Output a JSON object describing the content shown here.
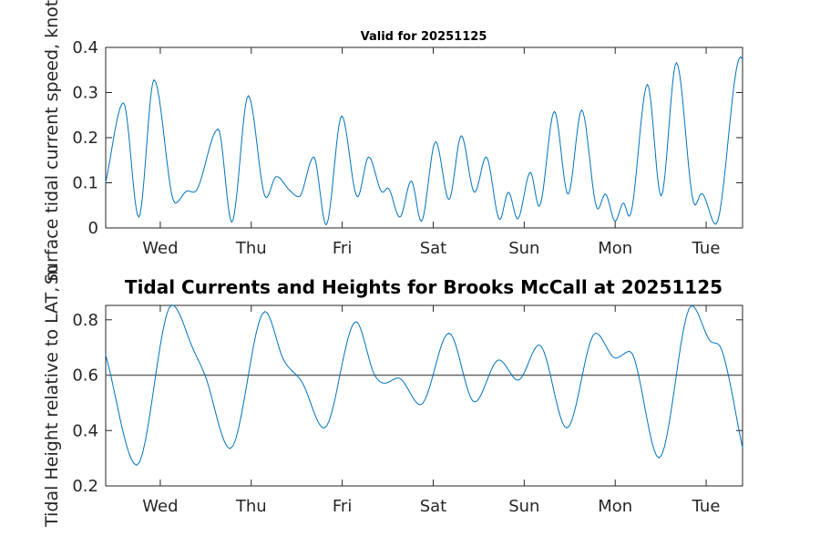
{
  "chart_data": [
    {
      "type": "line",
      "title": "Valid for 20251125",
      "xlabel": "",
      "ylabel": "Surface tidal current speed, knots",
      "x_unit": "days since Wed 00:00",
      "xlim": [
        -0.6,
        6.4
      ],
      "ylim": [
        0,
        0.4
      ],
      "yticks": [
        0,
        0.1,
        0.2,
        0.3,
        0.4
      ],
      "ytick_labels": [
        "0",
        "0.1",
        "0.2",
        "0.3",
        "0.4"
      ],
      "xticks": [
        0,
        1,
        2,
        3,
        4,
        5,
        6
      ],
      "xtick_labels": [
        "Wed",
        "Thu",
        "Fri",
        "Sat",
        "Sun",
        "Mon",
        "Tue"
      ],
      "grid": false,
      "color": "#0072BD",
      "series": [
        {
          "name": "current speed",
          "x": [
            -0.6,
            -0.405,
            -0.236,
            -0.068,
            0.164,
            0.286,
            0.4,
            0.636,
            0.786,
            0.968,
            1.164,
            1.277,
            1.423,
            1.523,
            1.686,
            1.823,
            1.995,
            2.168,
            2.291,
            2.445,
            2.5,
            2.632,
            2.759,
            2.868,
            3.027,
            3.173,
            3.309,
            3.455,
            3.582,
            3.732,
            3.827,
            3.927,
            4.068,
            4.164,
            4.332,
            4.482,
            4.632,
            4.809,
            4.891,
            5.0,
            5.091,
            5.155,
            5.355,
            5.505,
            5.673,
            5.877,
            5.95,
            6.105,
            6.377,
            6.4
          ],
          "y": [
            0.101,
            0.277,
            0.024,
            0.328,
            0.055,
            0.081,
            0.084,
            0.219,
            0.013,
            0.293,
            0.067,
            0.114,
            0.083,
            0.069,
            0.157,
            0.007,
            0.248,
            0.069,
            0.157,
            0.079,
            0.088,
            0.024,
            0.104,
            0.015,
            0.191,
            0.063,
            0.204,
            0.079,
            0.157,
            0.019,
            0.079,
            0.02,
            0.123,
            0.048,
            0.258,
            0.075,
            0.261,
            0.042,
            0.075,
            0.015,
            0.055,
            0.026,
            0.318,
            0.071,
            0.366,
            0.051,
            0.076,
            0.008,
            0.379,
            0.374
          ]
        }
      ]
    },
    {
      "type": "line",
      "title": "Tidal Currents and Heights for Brooks McCall at 20251125",
      "xlabel": "",
      "ylabel": "Tidal Height relative to LAT, m",
      "x_unit": "days since Wed 00:00",
      "xlim": [
        -0.6,
        6.4
      ],
      "ylim": [
        0.2,
        0.852
      ],
      "yticks": [
        0.2,
        0.4,
        0.6,
        0.8
      ],
      "ytick_labels": [
        "0.2",
        "0.4",
        "0.6",
        "0.8"
      ],
      "xticks": [
        0,
        1,
        2,
        3,
        4,
        5,
        6
      ],
      "xtick_labels": [
        "Wed",
        "Thu",
        "Fri",
        "Sat",
        "Sun",
        "Mon",
        "Tue"
      ],
      "grid": false,
      "color": "#0072BD",
      "reference_line": {
        "y": 0.6,
        "color": "#666666"
      },
      "series": [
        {
          "name": "tidal height",
          "x": [
            -0.6,
            -0.259,
            0.127,
            0.368,
            0.49,
            0.768,
            1.15,
            1.355,
            1.559,
            1.8,
            2.15,
            2.355,
            2.468,
            2.614,
            2.859,
            3.173,
            3.455,
            3.723,
            3.932,
            4.164,
            4.468,
            4.786,
            5.005,
            5.159,
            5.482,
            5.841,
            6.036,
            6.173,
            6.4
          ],
          "y": [
            0.673,
            0.275,
            0.854,
            0.689,
            0.601,
            0.335,
            0.83,
            0.656,
            0.574,
            0.409,
            0.793,
            0.601,
            0.571,
            0.59,
            0.493,
            0.752,
            0.503,
            0.655,
            0.582,
            0.709,
            0.409,
            0.752,
            0.662,
            0.686,
            0.301,
            0.851,
            0.727,
            0.689,
            0.337
          ]
        }
      ]
    }
  ]
}
